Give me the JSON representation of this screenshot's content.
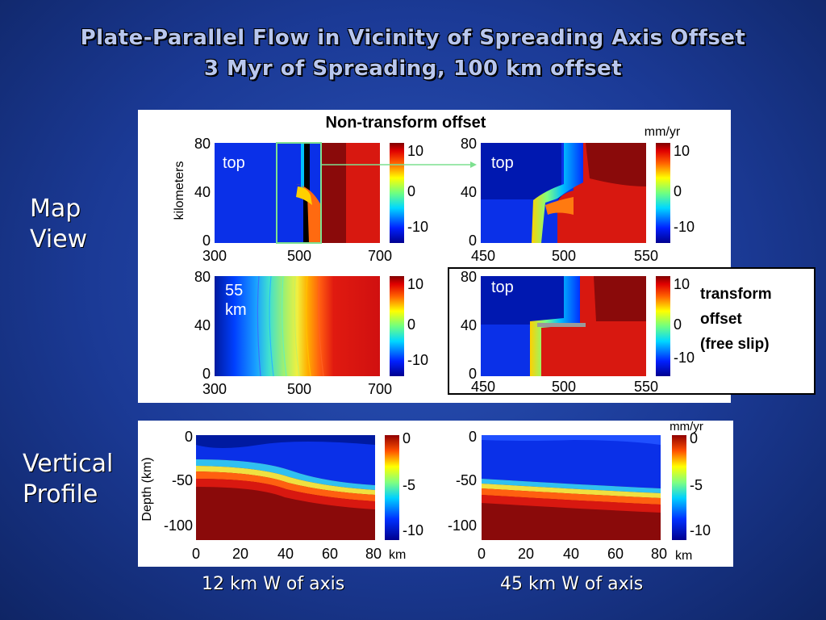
{
  "title": {
    "line1": "Plate-Parallel Flow in Vicinity of Spreading Axis Offset",
    "line2": "3 Myr of Spreading, 100 km offset"
  },
  "labels": {
    "map_view_line1": "Map",
    "map_view_line2": "View",
    "vertical_line1": "Vertical",
    "vertical_line2": "Profile",
    "non_transform": "Non-transform offset",
    "units": "mm/yr",
    "kilometers": "kilometers",
    "depth_axis": "Depth (km)",
    "km": "km",
    "top": "top",
    "depth_55": "55",
    "depth_55_unit": "km",
    "transform_line1": "transform",
    "transform_line2": "offset",
    "transform_line3": "(free slip)",
    "caption_left": "12 km W of axis",
    "caption_right": "45 km W of axis"
  },
  "axes": {
    "map_y_ticks": [
      "80",
      "40",
      "0"
    ],
    "map_wide_x_ticks": [
      "300",
      "500",
      "700"
    ],
    "map_zoom_x_ticks": [
      "450",
      "500",
      "550"
    ],
    "map_cbar_ticks": [
      "10",
      "0",
      "-10"
    ],
    "profile_y_ticks": [
      "0",
      "-50",
      "-100"
    ],
    "profile_x_ticks": [
      "0",
      "20",
      "40",
      "60",
      "80"
    ],
    "profile_cbar_ticks": [
      "0",
      "-5",
      "-10"
    ]
  },
  "colors": {
    "background": "#1b3a96",
    "deep_red": "#8a0a0a",
    "red": "#dd1a10",
    "blue_dark": "#000a8a",
    "blue": "#0a2ee0",
    "highlight_box": "#7de08f"
  }
}
